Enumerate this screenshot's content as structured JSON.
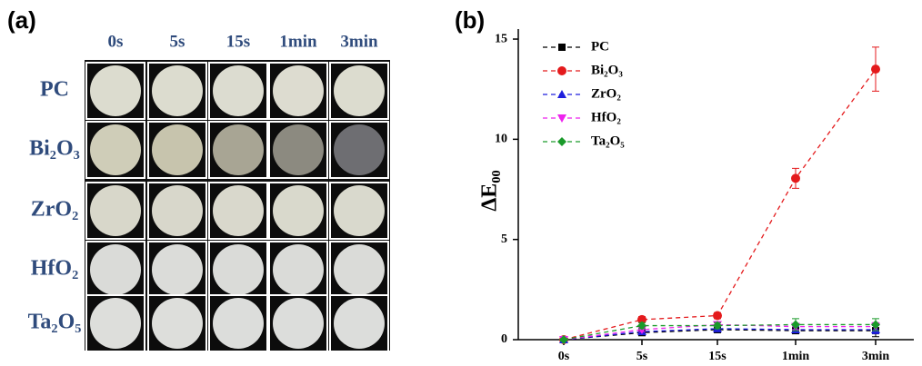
{
  "panel_a": {
    "label": "(a)",
    "columns": [
      "0s",
      "5s",
      "15s",
      "1min",
      "3min"
    ],
    "rows": [
      "PC",
      "Bi₂O₃",
      "ZrO₂",
      "HfO₂",
      "Ta₂O₅"
    ]
  },
  "chart_data": {
    "type": "line",
    "label": "(b)",
    "y_label": "ΔE₀₀",
    "categories": [
      "0s",
      "5s",
      "15s",
      "1min",
      "3min"
    ],
    "ylim": [
      0,
      15.5
    ],
    "yticks": [
      0,
      5,
      10,
      15
    ],
    "series": [
      {
        "name": "PC",
        "color": "#000000",
        "marker": "square",
        "values": [
          0,
          0.35,
          0.5,
          0.45,
          0.45
        ],
        "errors": [
          0.05,
          0.1,
          0.1,
          0.15,
          0.3
        ]
      },
      {
        "name": "Bi₂O₃",
        "color": "#e41a1c",
        "marker": "circle",
        "values": [
          0,
          1.0,
          1.2,
          8.05,
          13.5
        ],
        "errors": [
          0.05,
          0.15,
          0.15,
          0.5,
          1.1
        ]
      },
      {
        "name": "ZrO₂",
        "color": "#1f1fdd",
        "marker": "triangle-up",
        "values": [
          0,
          0.4,
          0.55,
          0.5,
          0.5
        ],
        "errors": [
          0.05,
          0.1,
          0.1,
          0.15,
          0.2
        ]
      },
      {
        "name": "HfO₂",
        "color": "#ee22ee",
        "marker": "triangle-down",
        "values": [
          0,
          0.5,
          0.75,
          0.65,
          0.65
        ],
        "errors": [
          0.05,
          0.1,
          0.1,
          0.15,
          0.2
        ]
      },
      {
        "name": "Ta₂O₅",
        "color": "#1a9a2a",
        "marker": "diamond",
        "values": [
          0,
          0.7,
          0.7,
          0.75,
          0.75
        ],
        "errors": [
          0.05,
          0.15,
          0.15,
          0.3,
          0.3
        ]
      }
    ]
  }
}
